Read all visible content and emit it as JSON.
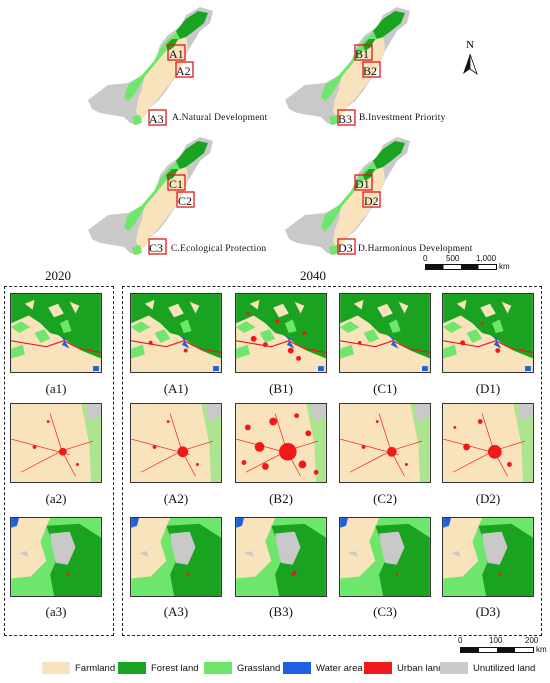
{
  "overview_maps": [
    {
      "id": "A",
      "caption": "A.Natural Development",
      "boxes": [
        "A1",
        "A2",
        "A3"
      ]
    },
    {
      "id": "B",
      "caption": "B.Investment Priority",
      "boxes": [
        "B1",
        "B2",
        "B3"
      ]
    },
    {
      "id": "C",
      "caption": "C.Ecological Protection",
      "boxes": [
        "C1",
        "C2",
        "C3"
      ]
    },
    {
      "id": "D",
      "caption": "D.Harmonious Development",
      "boxes": [
        "D1",
        "D2",
        "D3"
      ]
    }
  ],
  "north_arrow": {
    "label": "N"
  },
  "scale_top": {
    "ticks": [
      "0",
      "500",
      "1,000"
    ],
    "unit": "km"
  },
  "scale_bottom": {
    "ticks": [
      "0",
      "100",
      "200"
    ],
    "unit": "km"
  },
  "year_2020": "2020",
  "year_2040": "2040",
  "panels_2020": [
    "(a1)",
    "(a2)",
    "(a3)"
  ],
  "panels_2040": [
    [
      "(A1)",
      "(B1)",
      "(C1)",
      "(D1)"
    ],
    [
      "(A2)",
      "(B2)",
      "(C2)",
      "(D2)"
    ],
    [
      "(A3)",
      "(B3)",
      "(C3)",
      "(D3)"
    ]
  ],
  "legend": [
    {
      "label": "Farmland",
      "color": "#f9e3bd"
    },
    {
      "label": "Forest land",
      "color": "#1aa320"
    },
    {
      "label": "Grassland",
      "color": "#6ee56b"
    },
    {
      "label": "Water area",
      "color": "#1f5fe0"
    },
    {
      "label": "Urban land",
      "color": "#f01818"
    },
    {
      "label": "Unutilized land",
      "color": "#c9c9c9"
    }
  ]
}
